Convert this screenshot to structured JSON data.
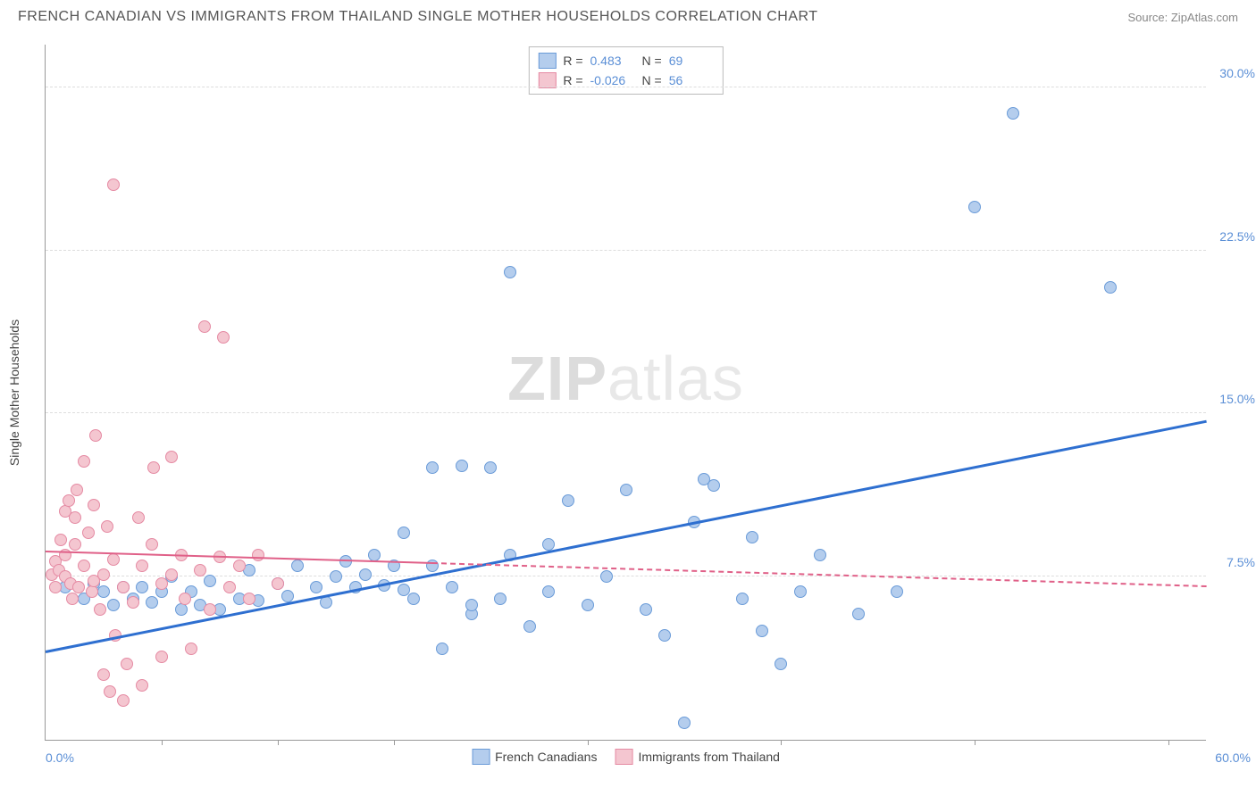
{
  "title": "FRENCH CANADIAN VS IMMIGRANTS FROM THAILAND SINGLE MOTHER HOUSEHOLDS CORRELATION CHART",
  "source": "Source: ZipAtlas.com",
  "watermark_a": "ZIP",
  "watermark_b": "atlas",
  "chart": {
    "type": "scatter",
    "y_label": "Single Mother Households",
    "x_min": 0,
    "x_max": 60,
    "y_min": 0,
    "y_max": 32,
    "x_min_label": "0.0%",
    "x_max_label": "60.0%",
    "y_ticks": [
      7.5,
      15.0,
      22.5,
      30.0
    ],
    "y_tick_labels": [
      "7.5%",
      "15.0%",
      "22.5%",
      "30.0%"
    ],
    "x_ticks": [
      6,
      12,
      18,
      28,
      38,
      48,
      58
    ],
    "background_color": "#ffffff",
    "grid_color": "#dddddd",
    "marker_radius": 7,
    "series": [
      {
        "name": "French Canadians",
        "color_fill": "#b4cded",
        "color_stroke": "#6a9bd8",
        "R": "0.483",
        "N": "69",
        "trend": {
          "y_at_x0": 4.0,
          "y_at_xmax": 14.6,
          "width": 3,
          "dash": false,
          "color": "#2e6fd0"
        },
        "points": [
          [
            1,
            7
          ],
          [
            2,
            6.5
          ],
          [
            2.5,
            7.2
          ],
          [
            3,
            6.8
          ],
          [
            3.5,
            6.2
          ],
          [
            4,
            7
          ],
          [
            4.5,
            6.5
          ],
          [
            5,
            7
          ],
          [
            5.5,
            6.3
          ],
          [
            6,
            6.8
          ],
          [
            6.5,
            7.5
          ],
          [
            7,
            6
          ],
          [
            7.5,
            6.8
          ],
          [
            8,
            6.2
          ],
          [
            8.5,
            7.3
          ],
          [
            9,
            6
          ],
          [
            10,
            6.5
          ],
          [
            10.5,
            7.8
          ],
          [
            11,
            6.4
          ],
          [
            12,
            7.2
          ],
          [
            12.5,
            6.6
          ],
          [
            13,
            8
          ],
          [
            14,
            7
          ],
          [
            14.5,
            6.3
          ],
          [
            15,
            7.5
          ],
          [
            15.5,
            8.2
          ],
          [
            16,
            7
          ],
          [
            16.5,
            7.6
          ],
          [
            17,
            8.5
          ],
          [
            17.5,
            7.1
          ],
          [
            18,
            8
          ],
          [
            18.5,
            9.5
          ],
          [
            19,
            6.5
          ],
          [
            20,
            8
          ],
          [
            20.5,
            4.2
          ],
          [
            21,
            7
          ],
          [
            21.5,
            12.6
          ],
          [
            22,
            5.8
          ],
          [
            23,
            12.5
          ],
          [
            23.5,
            6.5
          ],
          [
            24,
            8.5
          ],
          [
            25,
            5.2
          ],
          [
            26,
            9
          ],
          [
            27,
            11
          ],
          [
            28,
            6.2
          ],
          [
            29,
            7.5
          ],
          [
            30,
            11.5
          ],
          [
            31,
            6
          ],
          [
            32,
            4.8
          ],
          [
            33,
            0.8
          ],
          [
            33.5,
            10
          ],
          [
            34,
            12
          ],
          [
            34.5,
            11.7
          ],
          [
            36,
            6.5
          ],
          [
            36.5,
            9.3
          ],
          [
            37,
            5
          ],
          [
            38,
            3.5
          ],
          [
            39,
            6.8
          ],
          [
            40,
            8.5
          ],
          [
            42,
            5.8
          ],
          [
            44,
            6.8
          ],
          [
            48,
            24.5
          ],
          [
            50,
            28.8
          ],
          [
            55,
            20.8
          ],
          [
            24,
            21.5
          ],
          [
            18.5,
            6.9
          ],
          [
            20,
            12.5
          ],
          [
            22,
            6.2
          ],
          [
            26,
            6.8
          ]
        ]
      },
      {
        "name": "Immigrants from Thailand",
        "color_fill": "#f4c6d0",
        "color_stroke": "#e58aa3",
        "R": "-0.026",
        "N": "56",
        "trend": {
          "y_at_x0": 8.6,
          "y_at_xmax": 7.0,
          "width": 2,
          "dash_from": 20,
          "color": "#e06088"
        },
        "points": [
          [
            0.3,
            7.6
          ],
          [
            0.5,
            7
          ],
          [
            0.5,
            8.2
          ],
          [
            0.7,
            7.8
          ],
          [
            0.8,
            9.2
          ],
          [
            1,
            7.5
          ],
          [
            1,
            8.5
          ],
          [
            1,
            10.5
          ],
          [
            1.2,
            11
          ],
          [
            1.3,
            7.2
          ],
          [
            1.4,
            6.5
          ],
          [
            1.5,
            9
          ],
          [
            1.5,
            10.2
          ],
          [
            1.6,
            11.5
          ],
          [
            1.7,
            7
          ],
          [
            2,
            8
          ],
          [
            2,
            12.8
          ],
          [
            2.2,
            9.5
          ],
          [
            2.4,
            6.8
          ],
          [
            2.5,
            7.3
          ],
          [
            2.5,
            10.8
          ],
          [
            2.6,
            14
          ],
          [
            2.8,
            6
          ],
          [
            3,
            7.6
          ],
          [
            3,
            3
          ],
          [
            3.2,
            9.8
          ],
          [
            3.3,
            2.2
          ],
          [
            3.5,
            8.3
          ],
          [
            3.5,
            25.5
          ],
          [
            3.6,
            4.8
          ],
          [
            4,
            7
          ],
          [
            4,
            1.8
          ],
          [
            4.2,
            3.5
          ],
          [
            4.5,
            6.3
          ],
          [
            4.8,
            10.2
          ],
          [
            5,
            8
          ],
          [
            5,
            2.5
          ],
          [
            5.5,
            9
          ],
          [
            5.6,
            12.5
          ],
          [
            6,
            7.2
          ],
          [
            6,
            3.8
          ],
          [
            6.5,
            7.6
          ],
          [
            6.5,
            13
          ],
          [
            7,
            8.5
          ],
          [
            7.2,
            6.5
          ],
          [
            7.5,
            4.2
          ],
          [
            8,
            7.8
          ],
          [
            8.2,
            19
          ],
          [
            8.5,
            6
          ],
          [
            9,
            8.4
          ],
          [
            9.2,
            18.5
          ],
          [
            9.5,
            7
          ],
          [
            10,
            8
          ],
          [
            10.5,
            6.5
          ],
          [
            11,
            8.5
          ],
          [
            12,
            7.2
          ]
        ]
      }
    ]
  }
}
